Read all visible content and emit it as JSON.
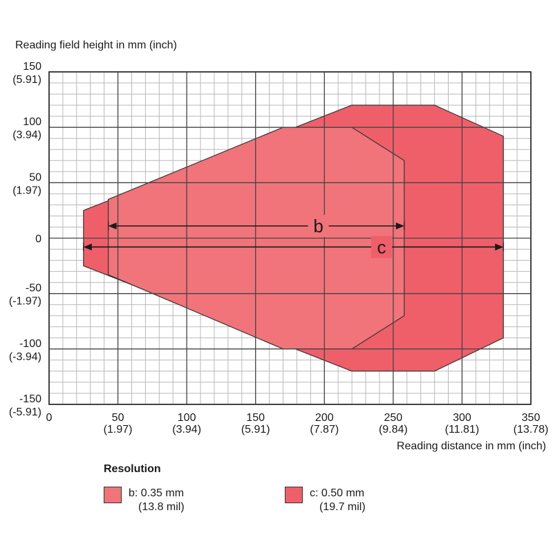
{
  "chart_data": {
    "type": "area",
    "ylabel": "Reading field height in mm (inch)",
    "xlabel": "Reading distance in mm (inch)",
    "xlim": [
      0,
      350
    ],
    "ylim": [
      -150,
      150
    ],
    "grid": true,
    "x_ticks": [
      {
        "value": 0,
        "mm": "0",
        "inch": ""
      },
      {
        "value": 50,
        "mm": "50",
        "inch": "(1.97)"
      },
      {
        "value": 100,
        "mm": "100",
        "inch": "(3.94)"
      },
      {
        "value": 150,
        "mm": "150",
        "inch": "(5.91)"
      },
      {
        "value": 200,
        "mm": "200",
        "inch": "(7.87)"
      },
      {
        "value": 250,
        "mm": "250",
        "inch": "(9.84)"
      },
      {
        "value": 300,
        "mm": "300",
        "inch": "(11.81)"
      },
      {
        "value": 350,
        "mm": "350",
        "inch": "(13.78)"
      }
    ],
    "y_ticks": [
      {
        "value": 150,
        "mm": "150",
        "inch": "(5.91)"
      },
      {
        "value": 100,
        "mm": "100",
        "inch": "(3.94)"
      },
      {
        "value": 50,
        "mm": "50",
        "inch": "(1.97)"
      },
      {
        "value": 0,
        "mm": "0",
        "inch": ""
      },
      {
        "value": -50,
        "mm": "-50",
        "inch": "(-1.97)"
      },
      {
        "value": -100,
        "mm": "-100",
        "inch": "(-3.94)"
      },
      {
        "value": -150,
        "mm": "-150",
        "inch": "(-5.91)"
      }
    ],
    "series": [
      {
        "name": "c",
        "color": "#ef5f6a",
        "polygon": [
          [
            25,
            25
          ],
          [
            220,
            120
          ],
          [
            280,
            120
          ],
          [
            330,
            92
          ],
          [
            330,
            -90
          ],
          [
            280,
            -120
          ],
          [
            220,
            -120
          ],
          [
            25,
            -25
          ]
        ],
        "arrow": {
          "from": 25,
          "to": 330,
          "y": -8
        }
      },
      {
        "name": "b",
        "color": "#f07479",
        "polygon": [
          [
            43,
            35
          ],
          [
            170,
            100
          ],
          [
            220,
            100
          ],
          [
            258,
            70
          ],
          [
            258,
            -70
          ],
          [
            220,
            -100
          ],
          [
            170,
            -100
          ],
          [
            43,
            -33
          ]
        ],
        "arrow": {
          "from": 43,
          "to": 258,
          "y": 11
        }
      }
    ]
  },
  "legend": {
    "title": "Resolution",
    "items": [
      {
        "label": "b: 0.35 mm",
        "sub": "(13.8 mil)",
        "color": "#f07479"
      },
      {
        "label": "c: 0.50 mm",
        "sub": "(19.7 mil)",
        "color": "#ef5f6a"
      }
    ]
  }
}
